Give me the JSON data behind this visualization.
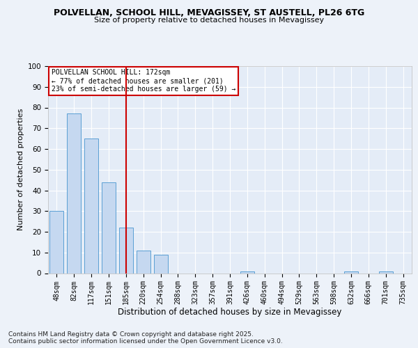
{
  "title1": "POLVELLAN, SCHOOL HILL, MEVAGISSEY, ST AUSTELL, PL26 6TG",
  "title2": "Size of property relative to detached houses in Mevagissey",
  "xlabel": "Distribution of detached houses by size in Mevagissey",
  "ylabel": "Number of detached properties",
  "categories": [
    "48sqm",
    "82sqm",
    "117sqm",
    "151sqm",
    "185sqm",
    "220sqm",
    "254sqm",
    "288sqm",
    "323sqm",
    "357sqm",
    "391sqm",
    "426sqm",
    "460sqm",
    "494sqm",
    "529sqm",
    "563sqm",
    "598sqm",
    "632sqm",
    "666sqm",
    "701sqm",
    "735sqm"
  ],
  "values": [
    30,
    77,
    65,
    44,
    22,
    11,
    9,
    0,
    0,
    0,
    0,
    1,
    0,
    0,
    0,
    0,
    0,
    1,
    0,
    1,
    0
  ],
  "bar_color": "#c5d8f0",
  "bar_edge_color": "#5a9fd4",
  "vline_x_index": 4,
  "vline_color": "#cc0000",
  "annotation_line1": "POLVELLAN SCHOOL HILL: 172sqm",
  "annotation_line2": "← 77% of detached houses are smaller (201)",
  "annotation_line3": "23% of semi-detached houses are larger (59) →",
  "annotation_box_color": "#ffffff",
  "annotation_box_edge_color": "#cc0000",
  "ylim": [
    0,
    100
  ],
  "yticks": [
    0,
    10,
    20,
    30,
    40,
    50,
    60,
    70,
    80,
    90,
    100
  ],
  "footer": "Contains HM Land Registry data © Crown copyright and database right 2025.\nContains public sector information licensed under the Open Government Licence v3.0.",
  "bg_color": "#edf2f9",
  "plot_bg_color": "#e4ecf7",
  "grid_color": "#ffffff",
  "title1_fontsize": 9,
  "title2_fontsize": 8,
  "xlabel_fontsize": 8.5,
  "ylabel_fontsize": 8,
  "tick_fontsize": 7,
  "footer_fontsize": 6.5
}
